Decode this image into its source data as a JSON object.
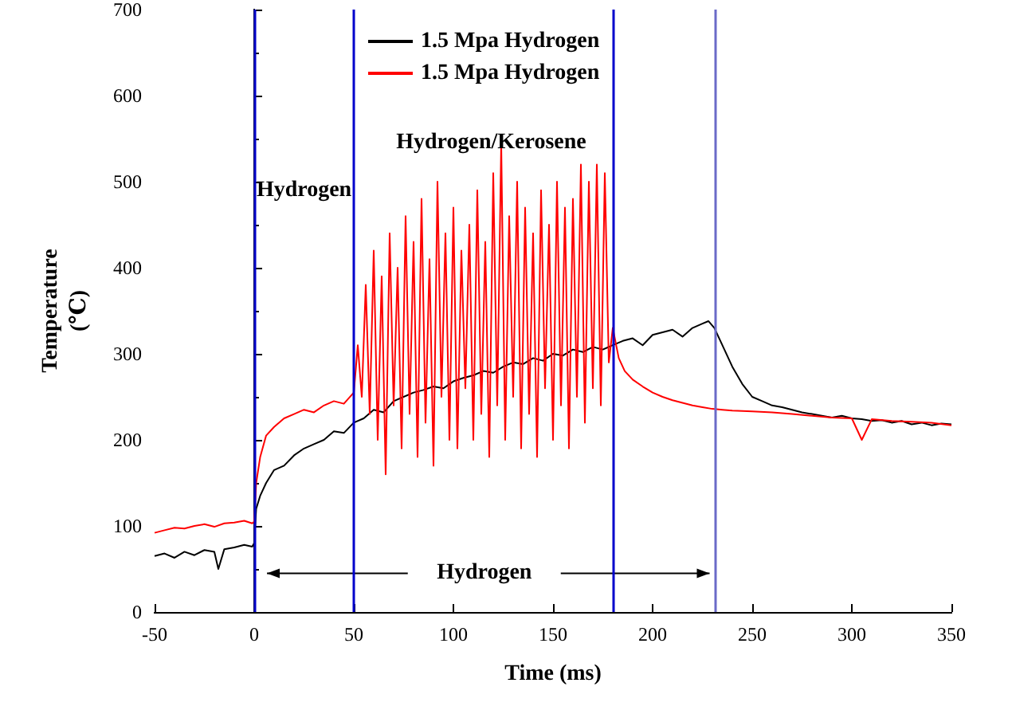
{
  "chart_data": {
    "type": "line",
    "xlabel": "Time (ms)",
    "ylabel": "Temperature\n(℃)",
    "xlim": [
      -50,
      350
    ],
    "xticks": [
      -50,
      0,
      50,
      100,
      150,
      200,
      250,
      300,
      350
    ],
    "ylim": [
      0,
      700
    ],
    "yticks": [
      0,
      100,
      200,
      300,
      400,
      500,
      600,
      700
    ],
    "grid": false,
    "legend": "top left",
    "marker": "none",
    "line_style": "solid",
    "series": [
      {
        "name": "1.5 Mpa Hydrogen",
        "color": "#000000",
        "x": [
          -50,
          -45,
          -40,
          -35,
          -30,
          -25,
          -20,
          -18,
          -15,
          -10,
          -5,
          -1,
          0,
          1,
          3,
          6,
          10,
          15,
          20,
          25,
          30,
          35,
          40,
          45,
          50,
          55,
          60,
          65,
          70,
          75,
          80,
          85,
          90,
          95,
          100,
          105,
          110,
          115,
          120,
          125,
          130,
          135,
          140,
          145,
          150,
          155,
          160,
          165,
          170,
          175,
          180,
          185,
          190,
          195,
          200,
          205,
          210,
          215,
          220,
          225,
          228,
          231,
          235,
          240,
          245,
          250,
          255,
          260,
          265,
          270,
          275,
          280,
          285,
          290,
          295,
          300,
          305,
          310,
          315,
          320,
          325,
          330,
          335,
          340,
          345,
          350
        ],
        "values": [
          65,
          68,
          63,
          70,
          66,
          72,
          70,
          50,
          73,
          75,
          78,
          76,
          80,
          120,
          135,
          150,
          165,
          170,
          182,
          190,
          195,
          200,
          210,
          208,
          220,
          225,
          235,
          232,
          245,
          250,
          255,
          258,
          262,
          260,
          268,
          272,
          275,
          280,
          278,
          285,
          290,
          288,
          295,
          292,
          300,
          298,
          305,
          302,
          308,
          305,
          310,
          315,
          318,
          310,
          322,
          325,
          328,
          320,
          330,
          335,
          338,
          330,
          310,
          285,
          265,
          250,
          245,
          240,
          238,
          235,
          232,
          230,
          228,
          226,
          228,
          225,
          224,
          222,
          223,
          220,
          222,
          218,
          220,
          217,
          219,
          218
        ]
      },
      {
        "name": "1.5 Mpa Hydrogen",
        "color": "#ff0000",
        "x": [
          -50,
          -45,
          -40,
          -35,
          -30,
          -25,
          -20,
          -15,
          -10,
          -5,
          -1,
          0,
          1,
          3,
          6,
          10,
          15,
          20,
          25,
          30,
          35,
          40,
          45,
          50,
          52,
          54,
          56,
          58,
          60,
          62,
          64,
          66,
          68,
          70,
          72,
          74,
          76,
          78,
          80,
          82,
          84,
          86,
          88,
          90,
          92,
          94,
          96,
          98,
          100,
          102,
          104,
          106,
          108,
          110,
          112,
          114,
          116,
          118,
          120,
          122,
          124,
          126,
          128,
          130,
          132,
          134,
          136,
          138,
          140,
          142,
          144,
          146,
          148,
          150,
          152,
          154,
          156,
          158,
          160,
          162,
          164,
          166,
          168,
          170,
          172,
          174,
          176,
          178,
          180,
          183,
          186,
          190,
          195,
          200,
          205,
          210,
          215,
          220,
          225,
          230,
          235,
          240,
          250,
          260,
          270,
          280,
          290,
          300,
          305,
          310,
          320,
          330,
          340,
          350
        ],
        "values": [
          92,
          95,
          98,
          97,
          100,
          102,
          99,
          103,
          104,
          106,
          103,
          105,
          150,
          180,
          205,
          215,
          225,
          230,
          235,
          232,
          240,
          245,
          242,
          255,
          310,
          250,
          380,
          230,
          420,
          200,
          390,
          160,
          440,
          240,
          400,
          190,
          460,
          230,
          430,
          180,
          480,
          220,
          410,
          170,
          500,
          250,
          440,
          200,
          470,
          190,
          420,
          260,
          450,
          200,
          490,
          230,
          430,
          180,
          510,
          240,
          545,
          200,
          460,
          250,
          500,
          190,
          470,
          230,
          440,
          180,
          490,
          260,
          450,
          200,
          500,
          240,
          470,
          190,
          480,
          250,
          520,
          220,
          500,
          260,
          520,
          240,
          510,
          290,
          330,
          295,
          280,
          270,
          262,
          255,
          250,
          246,
          243,
          240,
          238,
          236,
          235,
          234,
          233,
          232,
          230,
          228,
          226,
          225,
          200,
          224,
          222,
          221,
          220,
          217
        ]
      }
    ],
    "ref_lines": [
      {
        "axis": "x",
        "value": 0,
        "color": "#0000cc"
      },
      {
        "axis": "x",
        "value": 50,
        "color": "#0000cc"
      },
      {
        "axis": "x",
        "value": 180,
        "color": "#0000cc"
      },
      {
        "axis": "x",
        "value": 231,
        "color": "#6a6ac8"
      }
    ],
    "annotations": [
      "Hydrogen",
      "Hydrogen/Kerosene",
      {
        "text": "Hydrogen",
        "x": 231,
        "y": 45
      }
    ]
  }
}
